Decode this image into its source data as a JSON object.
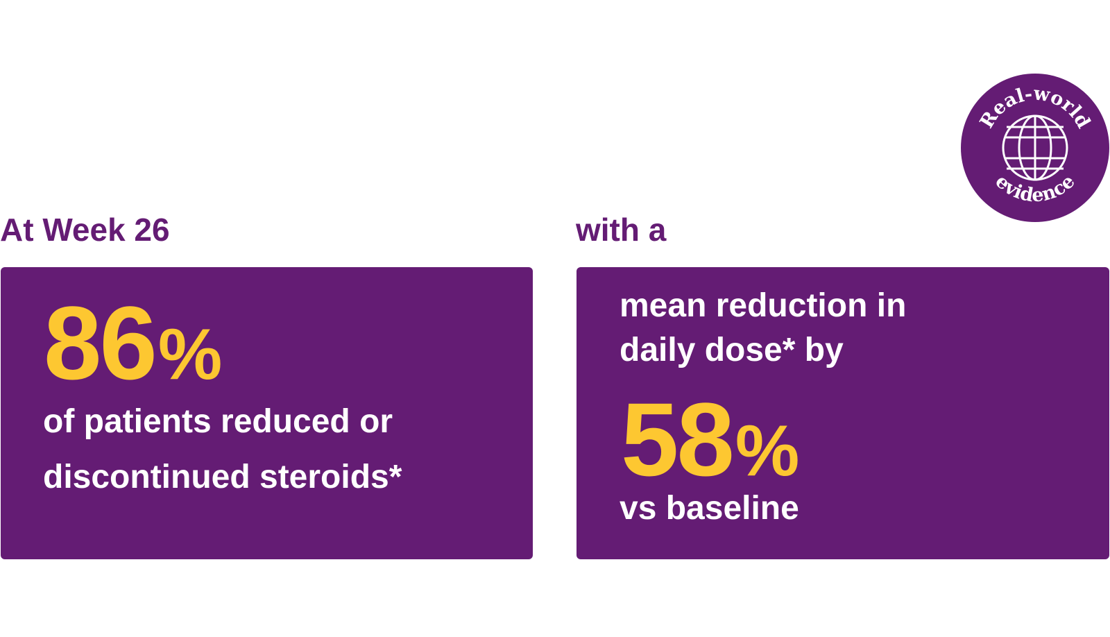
{
  "left": {
    "heading": "At Week 26",
    "stat_number": "86",
    "stat_unit": "%",
    "line1": "of patients reduced or",
    "line2": "discontinued steroids*"
  },
  "right": {
    "heading": "with a",
    "line1": "mean reduction in",
    "line2": "daily dose* by",
    "stat_number": "58",
    "stat_unit": "%",
    "line3": "vs baseline"
  },
  "badge": {
    "top_text": "Real-world",
    "bottom_text": "evidence",
    "icon": "globe-icon"
  },
  "colors": {
    "purple": "#641c74",
    "yellow": "#fdc731",
    "white": "#ffffff"
  }
}
